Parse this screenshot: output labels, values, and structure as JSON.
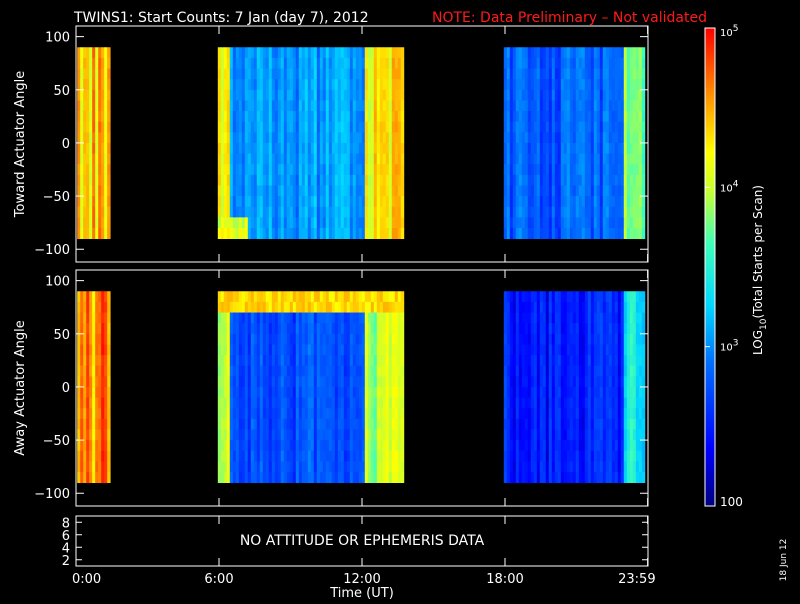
{
  "header": {
    "title": "TWINS1: Start Counts:  7 Jan (day   7), 2012",
    "note": "NOTE: Data Preliminary – Not validated",
    "note_color": "#ff1a1a"
  },
  "panels": [
    {
      "id": "toward",
      "ylabel": "Toward Actuator Angle",
      "yticks": [
        100,
        50,
        0,
        -50,
        -100
      ],
      "ylim": [
        -112,
        110
      ]
    },
    {
      "id": "away",
      "ylabel": "Away Actuator Angle",
      "yticks": [
        100,
        50,
        0,
        -50,
        -100
      ],
      "ylim": [
        -112,
        110
      ]
    }
  ],
  "ephemeris": {
    "message": "NO ATTITUDE OR EPHEMERIS DATA",
    "yticks": [
      8,
      6,
      4,
      2
    ]
  },
  "xaxis": {
    "label": "Time (UT)",
    "ticks": [
      {
        "hour": 0,
        "label": "0:00"
      },
      {
        "hour": 6,
        "label": "6:00"
      },
      {
        "hour": 12,
        "label": "12:00"
      },
      {
        "hour": 18,
        "label": "18:00"
      },
      {
        "hour": 23.983,
        "label": "23:59"
      }
    ]
  },
  "colorbar": {
    "label_prefix": "LOG",
    "label_sub": "10",
    "label_rest": "(Total Starts per Scan)",
    "ticks": [
      {
        "base": "10",
        "exp": "5",
        "value": 100000
      },
      {
        "base": "10",
        "exp": "4",
        "value": 10000
      },
      {
        "base": "10",
        "exp": "3",
        "value": 1000
      },
      {
        "text": "100",
        "value": 100
      }
    ],
    "range": [
      100,
      100000
    ],
    "scale": "log"
  },
  "side_date": "18 Jun 12",
  "chart_data": {
    "type": "heatmap",
    "title": "TWINS1: Start Counts:  7 Jan (day   7), 2012",
    "xlabel": "Time (UT)",
    "xlim_hours": [
      0,
      24
    ],
    "colorbar_range": [
      100,
      100000
    ],
    "colorbar_scale": "log",
    "data_intervals_hours": [
      [
        0.05,
        1.35
      ],
      [
        5.95,
        13.65
      ],
      [
        17.95,
        23.85
      ]
    ],
    "angle_range_deg": [
      -90,
      90
    ],
    "panels": [
      {
        "name": "Toward Actuator Angle",
        "typical_counts": {
          "interval_1": 20000,
          "interval_2": 1200,
          "interval_3": 700
        }
      },
      {
        "name": "Away Actuator Angle",
        "typical_counts": {
          "interval_1": 30000,
          "interval_2": 600,
          "interval_3": 350
        }
      }
    ]
  }
}
